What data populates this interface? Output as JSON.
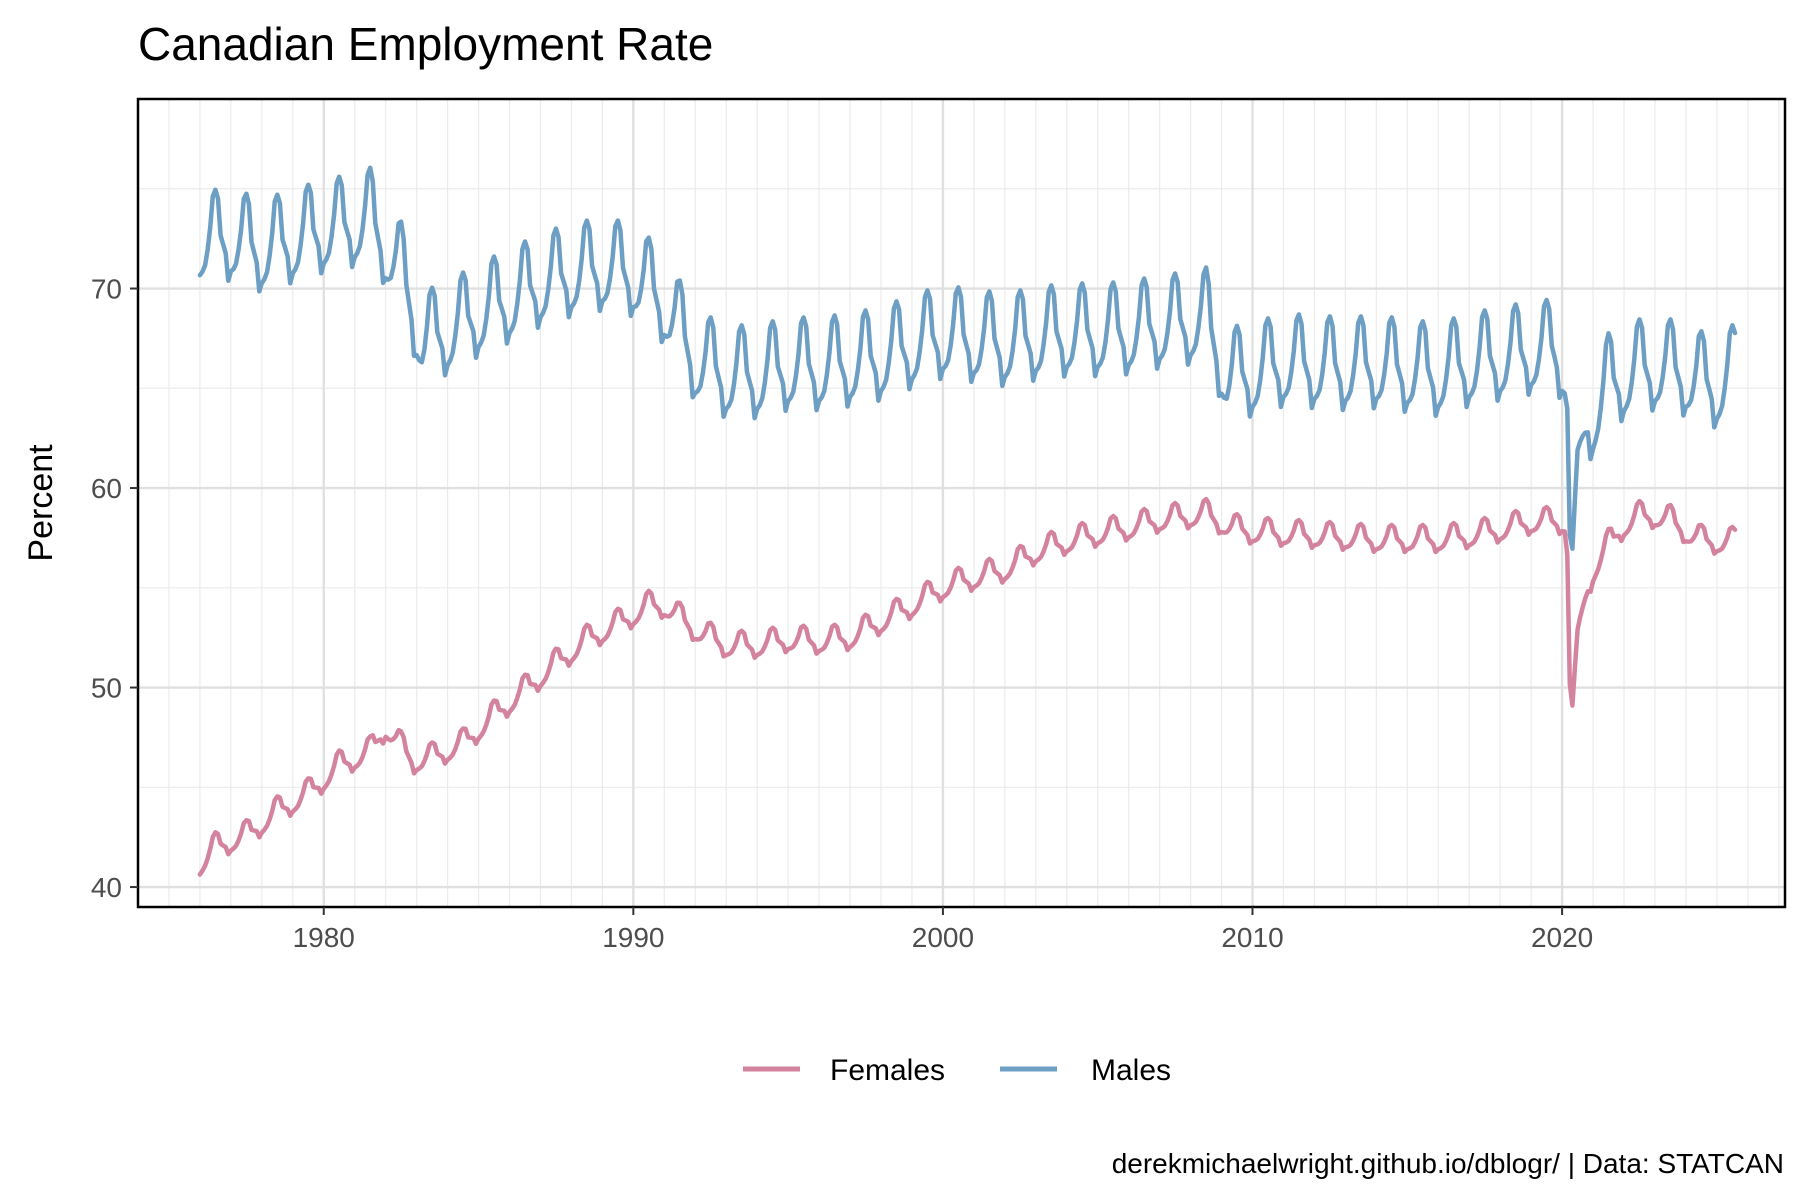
{
  "chart_data": {
    "type": "line",
    "title": "Canadian Employment Rate",
    "xlabel": "",
    "ylabel": "Percent",
    "caption": "derekmichaelwright.github.io/dblogr/ | Data: STATCAN",
    "xlim": [
      1974.0,
      2027.2
    ],
    "ylim": [
      39.0,
      79.5
    ],
    "x_ticks": [
      1980,
      1990,
      2000,
      2010,
      2020
    ],
    "x_tick_labels": [
      "1980",
      "1990",
      "2000",
      "2010",
      "2020"
    ],
    "y_ticks": [
      40,
      50,
      60,
      70
    ],
    "y_tick_labels": [
      "40",
      "50",
      "60",
      "70"
    ],
    "grid": true,
    "legend_position": "bottom",
    "seasonal_pattern": [
      -0.6,
      -0.5,
      -0.3,
      0.2,
      0.9,
      1.9,
      2.1,
      1.8,
      0.6,
      0.3,
      0.0,
      -0.9
    ],
    "series": [
      {
        "name": "Females",
        "color": "#d4839f",
        "seasonal_scale": 0.45,
        "trend_years": [
          1976.0,
          1976.5,
          1977.5,
          1978.5,
          1979.5,
          1980.5,
          1981.5,
          1982.0,
          1982.9,
          1983.5,
          1984.5,
          1985.5,
          1986.5,
          1987.5,
          1988.5,
          1989.5,
          1990.5,
          1991.0,
          1992.0,
          1993.0,
          1994.0,
          1995.0,
          1996.0,
          1997.0,
          1998.0,
          1999.0,
          2000.0,
          2001.0,
          2002.0,
          2003.0,
          2004.0,
          2005.0,
          2006.0,
          2007.0,
          2008.0,
          2008.5,
          2009.3,
          2010.0,
          2011.0,
          2012.0,
          2013.0,
          2014.0,
          2015.0,
          2016.0,
          2017.0,
          2018.0,
          2019.0,
          2020.0,
          2020.15,
          2020.28,
          2020.5,
          2020.7,
          2021.0,
          2021.5,
          2022.0,
          2022.5,
          2023.0,
          2023.5,
          2024.0,
          2024.5,
          2025.0,
          2025.6
        ],
        "trend_values": [
          40.9,
          41.8,
          42.4,
          43.6,
          44.5,
          45.9,
          46.6,
          47.8,
          46.1,
          46.3,
          47.0,
          48.4,
          49.7,
          51.0,
          52.2,
          53.0,
          53.9,
          53.9,
          52.7,
          51.9,
          51.9,
          52.2,
          52.1,
          52.3,
          53.1,
          53.9,
          54.8,
          55.3,
          55.7,
          56.6,
          57.1,
          57.5,
          57.8,
          58.2,
          58.4,
          58.5,
          57.8,
          57.6,
          57.5,
          57.4,
          57.3,
          57.2,
          57.2,
          57.2,
          57.4,
          57.7,
          58.1,
          58.1,
          58.0,
          47.8,
          52.6,
          54.2,
          55.6,
          57.0,
          57.9,
          58.4,
          58.4,
          58.2,
          57.6,
          57.2,
          57.1,
          57.1
        ]
      },
      {
        "name": "Males",
        "color": "#6d9ec4",
        "seasonal_scale": 1.55,
        "trend_years": [
          1976.0,
          1977.0,
          1978.0,
          1979.0,
          1980.0,
          1981.0,
          1981.5,
          1982.5,
          1983.2,
          1984.0,
          1985.0,
          1986.0,
          1987.0,
          1988.0,
          1989.0,
          1990.0,
          1991.0,
          1992.0,
          1993.0,
          1994.0,
          1995.0,
          1996.0,
          1997.0,
          1998.0,
          1999.0,
          2000.0,
          2001.0,
          2002.0,
          2003.0,
          2004.0,
          2005.0,
          2006.0,
          2007.0,
          2008.0,
          2008.5,
          2009.2,
          2010.0,
          2011.0,
          2012.0,
          2013.0,
          2014.0,
          2015.0,
          2016.0,
          2017.0,
          2018.0,
          2019.0,
          2019.7,
          2020.0,
          2020.15,
          2020.28,
          2020.5,
          2020.7,
          2021.0,
          2021.5,
          2022.0,
          2022.5,
          2023.0,
          2023.5,
          2024.0,
          2024.5,
          2025.0,
          2025.6
        ],
        "trend_values": [
          71.6,
          71.8,
          71.2,
          71.7,
          72.2,
          72.5,
          72.8,
          70.1,
          66.6,
          67.1,
          68.0,
          68.7,
          69.5,
          70.0,
          70.3,
          70.0,
          68.6,
          65.7,
          64.9,
          64.9,
          65.3,
          65.3,
          65.5,
          65.8,
          66.4,
          66.9,
          66.7,
          66.5,
          66.8,
          67.0,
          67.0,
          67.1,
          67.4,
          67.6,
          67.8,
          64.8,
          65.0,
          65.5,
          65.4,
          65.3,
          65.4,
          65.2,
          65.0,
          65.5,
          65.8,
          66.1,
          66.2,
          65.8,
          65.3,
          55.3,
          61.6,
          62.7,
          62.9,
          64.5,
          64.8,
          65.2,
          65.3,
          65.2,
          65.0,
          64.6,
          64.4,
          65.0
        ]
      }
    ]
  }
}
